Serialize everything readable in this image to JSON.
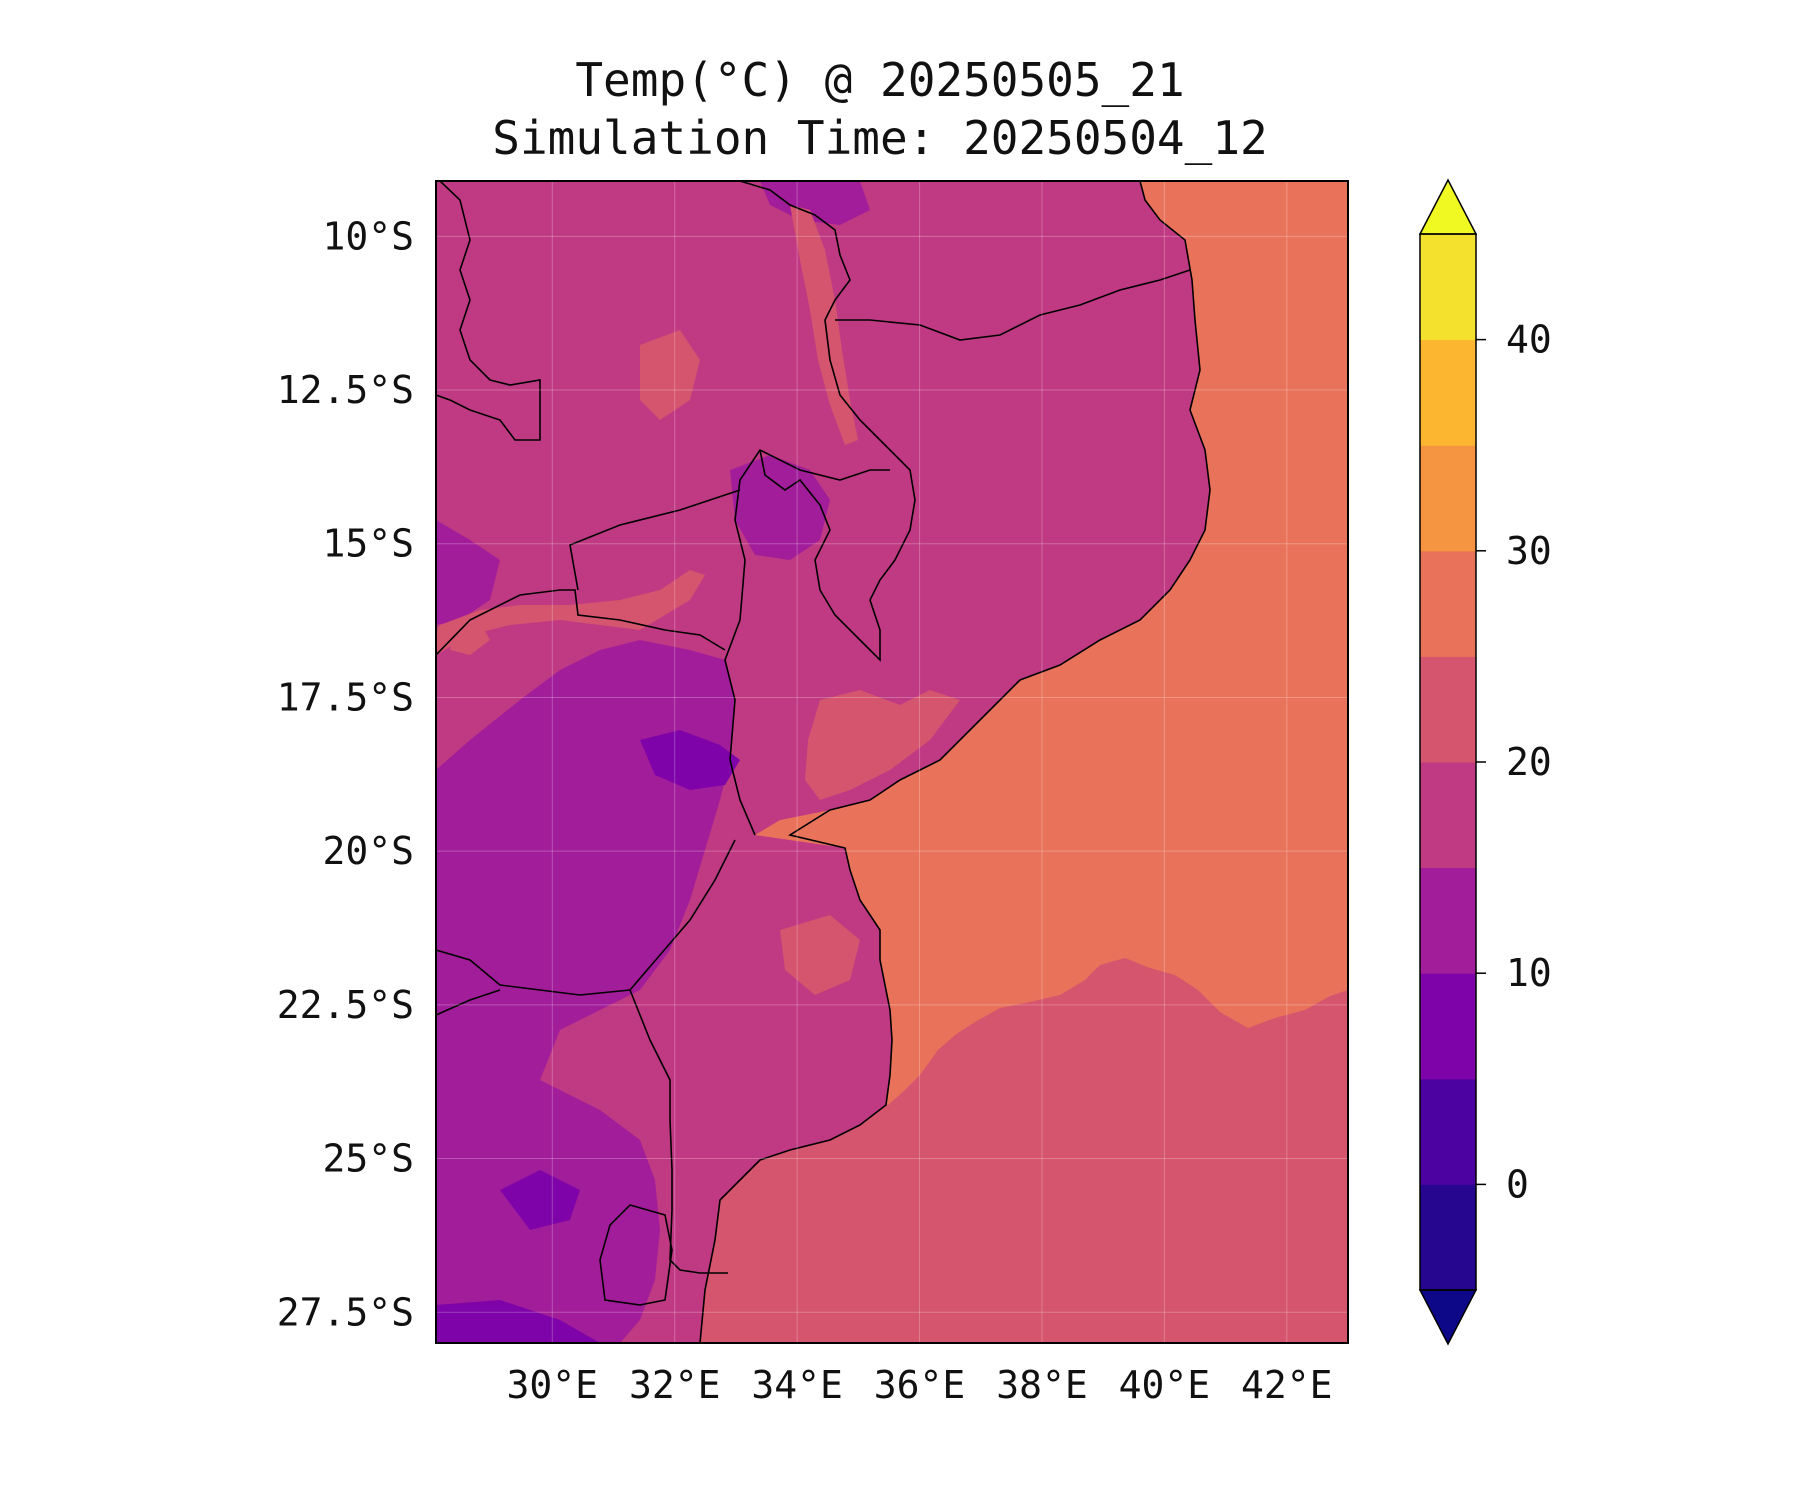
{
  "title": {
    "line1": "Temp(°C) @ 20250505_21",
    "line2": "Simulation Time: 20250504_12"
  },
  "map": {
    "variable": "temperature",
    "units": "°C",
    "region": "Mozambique and surrounding southern Africa",
    "lon_range": [
      28.1,
      43.0
    ],
    "lat_range": [
      -28.0,
      -9.1
    ],
    "lon_ticks": [
      {
        "value": 30,
        "label": "30°E"
      },
      {
        "value": 32,
        "label": "32°E"
      },
      {
        "value": 34,
        "label": "34°E"
      },
      {
        "value": 36,
        "label": "36°E"
      },
      {
        "value": 38,
        "label": "38°E"
      },
      {
        "value": 40,
        "label": "40°E"
      },
      {
        "value": 42,
        "label": "42°E"
      }
    ],
    "lat_ticks": [
      {
        "value": -10,
        "label": "10°S"
      },
      {
        "value": -12.5,
        "label": "12.5°S"
      },
      {
        "value": -15,
        "label": "15°S"
      },
      {
        "value": -17.5,
        "label": "17.5°S"
      },
      {
        "value": -20,
        "label": "20°S"
      },
      {
        "value": -22.5,
        "label": "22.5°S"
      },
      {
        "value": -25,
        "label": "25°S"
      },
      {
        "value": -27.5,
        "label": "27.5°S"
      }
    ],
    "grid": true
  },
  "colorbar": {
    "min": -5,
    "max": 45,
    "extend": "both",
    "levels": [
      -5,
      0,
      5,
      10,
      15,
      20,
      25,
      30,
      35,
      40,
      45
    ],
    "colors": [
      "#26068f",
      "#4c02a1",
      "#7e03a8",
      "#a21d9a",
      "#c03a83",
      "#d5546e",
      "#e8735a",
      "#f69541",
      "#fdb62f",
      "#f3e12e"
    ],
    "under_color": "#0d0887",
    "over_color": "#f0f921",
    "ticks": [
      {
        "value": 0,
        "label": "0"
      },
      {
        "value": 10,
        "label": "10"
      },
      {
        "value": 20,
        "label": "20"
      },
      {
        "value": 30,
        "label": "30"
      },
      {
        "value": 40,
        "label": "40"
      }
    ]
  },
  "colors": {
    "ocean_north": "#e8735a",
    "ocean_south": "#d5546e",
    "land_main": "#c03a83",
    "land_cool": "#a21d9a",
    "land_cold": "#7e03a8",
    "land_warm": "#d5546e",
    "coastline": "#000000"
  }
}
